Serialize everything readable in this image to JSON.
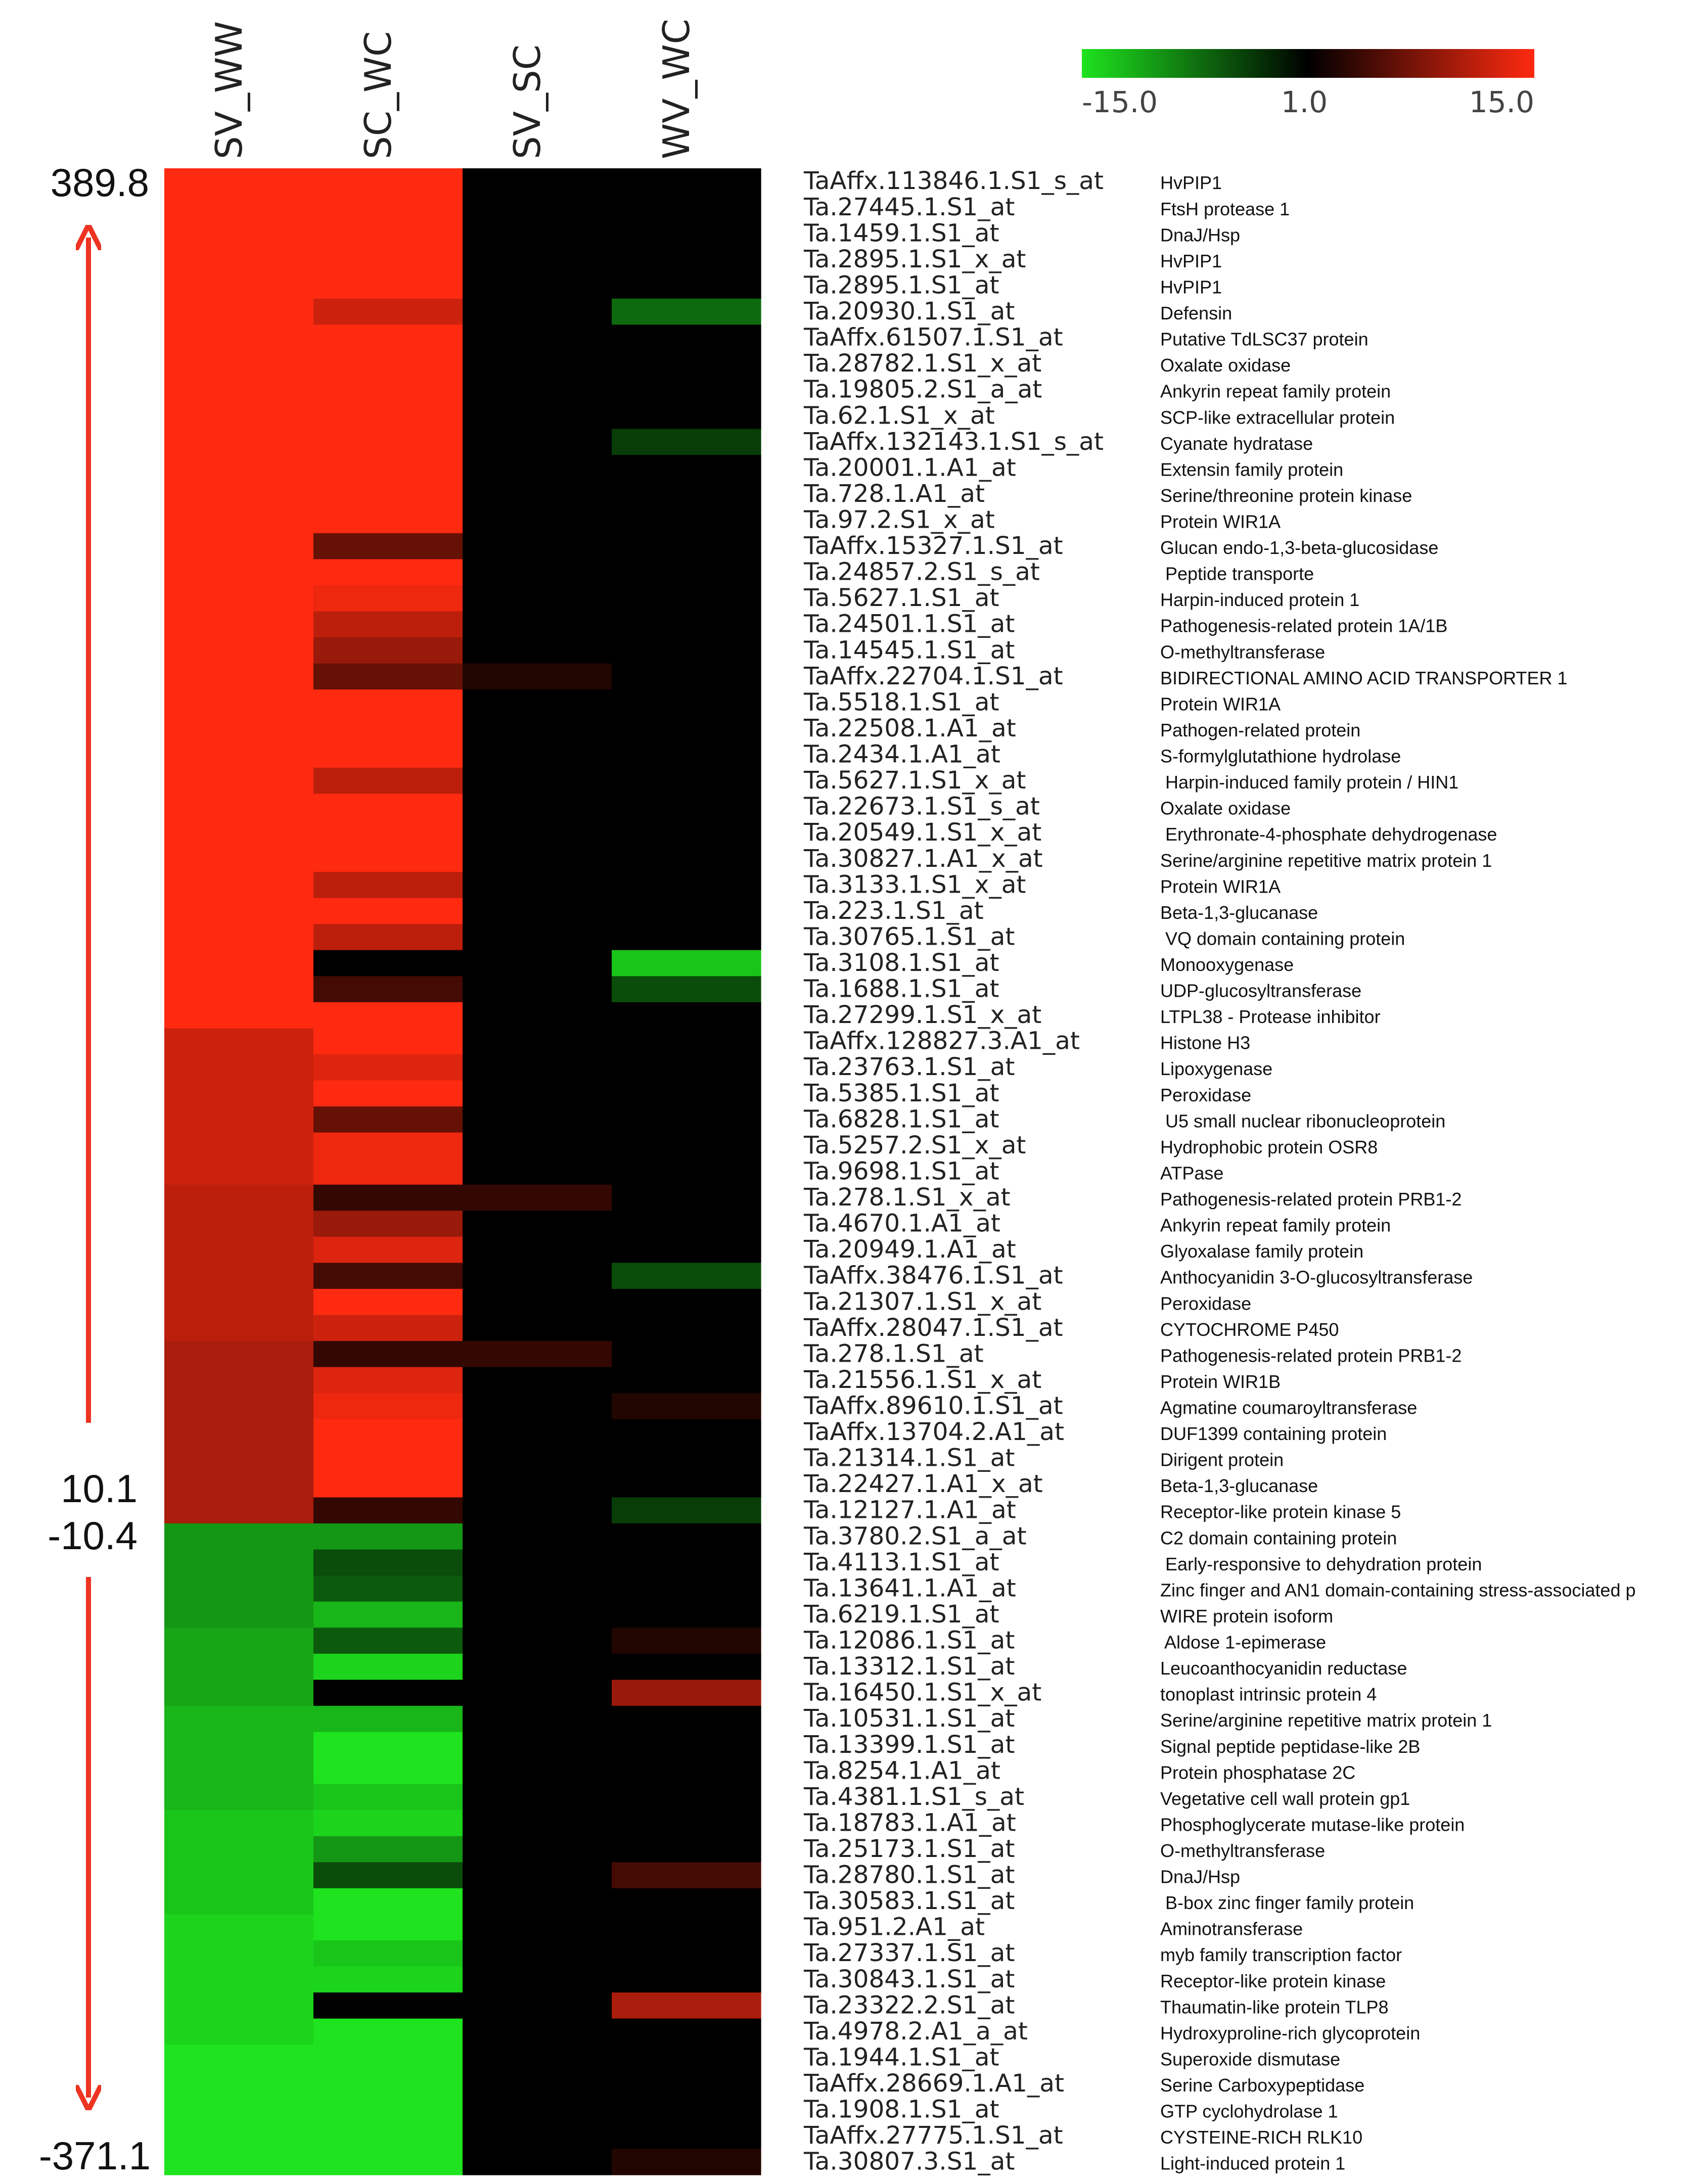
{
  "chart_data": {
    "type": "heatmap",
    "columns": [
      "SV_WW",
      "SC_WC",
      "SV_SC",
      "WV_WC"
    ],
    "color_scale": {
      "min": -15.0,
      "mid": 1.0,
      "max": 15.0,
      "labels": [
        "-15.0",
        "1.0",
        "15.0"
      ],
      "colors": [
        "#1ee31e",
        "#000000",
        "#ff2a10"
      ]
    },
    "side_labels": {
      "top": "389.8",
      "upper_bottom": "10.1",
      "lower_top": "-10.4",
      "bottom": "-371.1"
    },
    "arrow_color": "#ee3322",
    "rows": [
      {
        "probe": "TaAffx.113846.1.S1_s_at",
        "annotation": "HvPIP1",
        "values": [
          15,
          15,
          0,
          0
        ]
      },
      {
        "probe": "Ta.27445.1.S1_at",
        "annotation": "FtsH protease 1",
        "values": [
          15,
          15,
          0,
          0
        ]
      },
      {
        "probe": "Ta.1459.1.S1_at",
        "annotation": "DnaJ/Hsp",
        "values": [
          15,
          15,
          0,
          0
        ]
      },
      {
        "probe": "Ta.2895.1.S1_x_at",
        "annotation": "HvPIP1",
        "values": [
          15,
          15,
          0,
          0
        ]
      },
      {
        "probe": "Ta.2895.1.S1_at",
        "annotation": "HvPIP1",
        "values": [
          15,
          15,
          0,
          0
        ]
      },
      {
        "probe": "Ta.20930.1.S1_at",
        "annotation": "Defensin",
        "values": [
          15,
          12,
          0,
          -7
        ]
      },
      {
        "probe": "TaAffx.61507.1.S1_at",
        "annotation": "Putative TdLSC37 protein",
        "values": [
          15,
          15,
          0,
          0
        ]
      },
      {
        "probe": "Ta.28782.1.S1_x_at",
        "annotation": "Oxalate oxidase",
        "values": [
          15,
          15,
          0,
          0
        ]
      },
      {
        "probe": "Ta.19805.2.S1_a_at",
        "annotation": "Ankyrin repeat family protein",
        "values": [
          15,
          15,
          0,
          0
        ]
      },
      {
        "probe": "Ta.62.1.S1_x_at",
        "annotation": "SCP-like extracellular protein",
        "values": [
          15,
          15,
          0,
          0
        ]
      },
      {
        "probe": "TaAffx.132143.1.S1_s_at",
        "annotation": "Cyanate hydratase",
        "values": [
          15,
          15,
          0,
          -4
        ]
      },
      {
        "probe": "Ta.20001.1.A1_at",
        "annotation": "Extensin family protein",
        "values": [
          15,
          15,
          0,
          0
        ]
      },
      {
        "probe": "Ta.728.1.A1_at",
        "annotation": "Serine/threonine protein kinase",
        "values": [
          15,
          15,
          0,
          0
        ]
      },
      {
        "probe": "Ta.97.2.S1_x_at",
        "annotation": "Protein WIR1A",
        "values": [
          15,
          15,
          0,
          0
        ]
      },
      {
        "probe": "TaAffx.15327.1.S1_at",
        "annotation": "Glucan endo-1,3-beta-glucosidase",
        "values": [
          15,
          6,
          0,
          0
        ]
      },
      {
        "probe": "Ta.24857.2.S1_s_at",
        "annotation": " Peptide transporte",
        "values": [
          15,
          15,
          0,
          0
        ]
      },
      {
        "probe": "Ta.5627.1.S1_at",
        "annotation": "Harpin-induced protein 1",
        "values": [
          15,
          14,
          0,
          0
        ]
      },
      {
        "probe": "Ta.24501.1.S1_at",
        "annotation": "Pathogenesis-related protein 1A/1B",
        "values": [
          15,
          11,
          0,
          0
        ]
      },
      {
        "probe": "Ta.14545.1.S1_at",
        "annotation": "O-methyltransferase",
        "values": [
          15,
          9,
          0,
          0
        ]
      },
      {
        "probe": "TaAffx.22704.1.S1_at",
        "annotation": "BIDIRECTIONAL AMINO ACID TRANSPORTER 1",
        "values": [
          15,
          6,
          2,
          0
        ]
      },
      {
        "probe": "Ta.5518.1.S1_at",
        "annotation": "Protein WIR1A",
        "values": [
          15,
          15,
          0,
          0
        ]
      },
      {
        "probe": "Ta.22508.1.A1_at",
        "annotation": "Pathogen-related protein",
        "values": [
          15,
          15,
          0,
          0
        ]
      },
      {
        "probe": "Ta.2434.1.A1_at",
        "annotation": "S-formylglutathione hydrolase",
        "values": [
          15,
          15,
          0,
          0
        ]
      },
      {
        "probe": "Ta.5627.1.S1_x_at",
        "annotation": " Harpin-induced family protein / HIN1",
        "values": [
          15,
          11,
          0,
          0
        ]
      },
      {
        "probe": "Ta.22673.1.S1_s_at",
        "annotation": "Oxalate oxidase",
        "values": [
          15,
          15,
          0,
          0
        ]
      },
      {
        "probe": "Ta.20549.1.S1_x_at",
        "annotation": " Erythronate-4-phosphate dehydrogenase",
        "values": [
          15,
          15,
          0,
          0
        ]
      },
      {
        "probe": "Ta.30827.1.A1_x_at",
        "annotation": "Serine/arginine repetitive matrix protein 1",
        "values": [
          15,
          15,
          0,
          0
        ]
      },
      {
        "probe": "Ta.3133.1.S1_x_at",
        "annotation": "Protein WIR1A",
        "values": [
          15,
          11,
          0,
          0
        ]
      },
      {
        "probe": "Ta.223.1.S1_at",
        "annotation": "Beta-1,3-glucanase",
        "values": [
          15,
          15,
          0,
          0
        ]
      },
      {
        "probe": "Ta.30765.1.S1_at",
        "annotation": " VQ domain containing protein",
        "values": [
          15,
          11,
          0,
          0
        ]
      },
      {
        "probe": "Ta.3108.1.S1_at",
        "annotation": "Monooxygenase",
        "values": [
          15,
          0,
          0,
          -13
        ]
      },
      {
        "probe": "Ta.1688.1.S1_at",
        "annotation": "UDP-glucosyltransferase",
        "values": [
          15,
          4,
          0,
          -5
        ]
      },
      {
        "probe": "Ta.27299.1.S1_x_at",
        "annotation": "LTPL38 - Protease inhibitor",
        "values": [
          15,
          15,
          0,
          0
        ]
      },
      {
        "probe": "TaAffx.128827.3.A1_at",
        "annotation": "Histone H3",
        "values": [
          12,
          15,
          0,
          0
        ]
      },
      {
        "probe": "Ta.23763.1.S1_at",
        "annotation": "Lipoxygenase",
        "values": [
          12,
          13,
          0,
          0
        ]
      },
      {
        "probe": "Ta.5385.1.S1_at",
        "annotation": "Peroxidase",
        "values": [
          12,
          15,
          0,
          0
        ]
      },
      {
        "probe": "Ta.6828.1.S1_at",
        "annotation": " U5 small nuclear ribonucleoprotein",
        "values": [
          12,
          6,
          0,
          0
        ]
      },
      {
        "probe": "Ta.5257.2.S1_x_at",
        "annotation": "Hydrophobic protein OSR8",
        "values": [
          12,
          14,
          0,
          0
        ]
      },
      {
        "probe": "Ta.9698.1.S1_at",
        "annotation": "ATPase",
        "values": [
          12,
          14,
          0,
          0
        ]
      },
      {
        "probe": "Ta.278.1.S1_x_at",
        "annotation": "Pathogenesis-related protein PRB1-2",
        "values": [
          11,
          3,
          3,
          0
        ]
      },
      {
        "probe": "Ta.4670.1.A1_at",
        "annotation": "Ankyrin repeat family protein",
        "values": [
          11,
          9,
          0,
          0
        ]
      },
      {
        "probe": "Ta.20949.1.A1_at",
        "annotation": "Glyoxalase family protein",
        "values": [
          11,
          13,
          0,
          0
        ]
      },
      {
        "probe": "TaAffx.38476.1.S1_at",
        "annotation": "Anthocyanidin 3-O-glucosyltransferase",
        "values": [
          11,
          4,
          0,
          -5
        ]
      },
      {
        "probe": "Ta.21307.1.S1_x_at",
        "annotation": "Peroxidase",
        "values": [
          11,
          15,
          0,
          0
        ]
      },
      {
        "probe": "TaAffx.28047.1.S1_at",
        "annotation": "CYTOCHROME P450",
        "values": [
          11,
          12,
          0,
          0
        ]
      },
      {
        "probe": "Ta.278.1.S1_at",
        "annotation": "Pathogenesis-related protein PRB1-2",
        "values": [
          10,
          3,
          3,
          0
        ]
      },
      {
        "probe": "Ta.21556.1.S1_x_at",
        "annotation": "Protein WIR1B",
        "values": [
          10,
          13,
          0,
          0
        ]
      },
      {
        "probe": "TaAffx.89610.1.S1_at",
        "annotation": "Agmatine coumaroyltransferase",
        "values": [
          10,
          14,
          0,
          2
        ]
      },
      {
        "probe": "TaAffx.13704.2.A1_at",
        "annotation": "DUF1399 containing protein",
        "values": [
          10,
          15,
          0,
          0
        ]
      },
      {
        "probe": "Ta.21314.1.S1_at",
        "annotation": "Dirigent protein",
        "values": [
          10,
          15,
          0,
          0
        ]
      },
      {
        "probe": "Ta.22427.1.A1_x_at",
        "annotation": "Beta-1,3-glucanase",
        "values": [
          10,
          15,
          0,
          0
        ]
      },
      {
        "probe": "Ta.12127.1.A1_at",
        "annotation": "Receptor-like protein kinase 5",
        "values": [
          10,
          3,
          0,
          -4
        ]
      },
      {
        "probe": "Ta.3780.2.S1_a_at",
        "annotation": "C2 domain containing protein",
        "values": [
          -10,
          -10,
          0,
          0
        ]
      },
      {
        "probe": "Ta.4113.1.S1_at",
        "annotation": " Early-responsive to dehydration protein",
        "values": [
          -10,
          -5,
          0,
          0
        ]
      },
      {
        "probe": "Ta.13641.1.A1_at",
        "annotation": "Zinc finger and AN1 domain-containing stress-associated p",
        "values": [
          -10,
          -6,
          0,
          0
        ]
      },
      {
        "probe": "Ta.6219.1.S1_at",
        "annotation": "WIRE protein isoform",
        "values": [
          -10,
          -12,
          0,
          0
        ]
      },
      {
        "probe": "Ta.12086.1.S1_at",
        "annotation": " Aldose 1-epimerase",
        "values": [
          -11,
          -6,
          0,
          2
        ]
      },
      {
        "probe": "Ta.13312.1.S1_at",
        "annotation": "Leucoanthocyanidin reductase",
        "values": [
          -11,
          -14,
          0,
          0
        ]
      },
      {
        "probe": "Ta.16450.1.S1_x_at",
        "annotation": "tonoplast intrinsic protein 4",
        "values": [
          -11,
          0,
          0,
          9
        ]
      },
      {
        "probe": "Ta.10531.1.S1_at",
        "annotation": "Serine/arginine repetitive matrix protein 1",
        "values": [
          -12,
          -12,
          0,
          0
        ]
      },
      {
        "probe": "Ta.13399.1.S1_at",
        "annotation": "Signal peptide peptidase-like 2B",
        "values": [
          -12,
          -15,
          0,
          0
        ]
      },
      {
        "probe": "Ta.8254.1.A1_at",
        "annotation": "Protein phosphatase 2C",
        "values": [
          -12,
          -15,
          0,
          0
        ]
      },
      {
        "probe": "Ta.4381.1.S1_s_at",
        "annotation": "Vegetative cell wall protein gp1",
        "values": [
          -12,
          -13,
          0,
          0
        ]
      },
      {
        "probe": "Ta.18783.1.A1_at",
        "annotation": "Phosphoglycerate mutase-like protein",
        "values": [
          -13,
          -14,
          0,
          0
        ]
      },
      {
        "probe": "Ta.25173.1.S1_at",
        "annotation": "O-methyltransferase",
        "values": [
          -13,
          -10,
          0,
          0
        ]
      },
      {
        "probe": "Ta.28780.1.S1_at",
        "annotation": "DnaJ/Hsp",
        "values": [
          -13,
          -5,
          0,
          4
        ]
      },
      {
        "probe": "Ta.30583.1.S1_at",
        "annotation": " B-box zinc finger family protein",
        "values": [
          -13,
          -15,
          0,
          0
        ]
      },
      {
        "probe": "Ta.951.2.A1_at",
        "annotation": "Aminotransferase",
        "values": [
          -14,
          -15,
          0,
          0
        ]
      },
      {
        "probe": "Ta.27337.1.S1_at",
        "annotation": "myb family transcription factor",
        "values": [
          -14,
          -13,
          0,
          0
        ]
      },
      {
        "probe": "Ta.30843.1.S1_at",
        "annotation": "Receptor-like protein kinase",
        "values": [
          -14,
          -14,
          0,
          0
        ]
      },
      {
        "probe": "Ta.23322.2.S1_at",
        "annotation": "Thaumatin-like protein TLP8",
        "values": [
          -14,
          0,
          0,
          10
        ]
      },
      {
        "probe": "Ta.4978.2.A1_a_at",
        "annotation": "Hydroxyproline-rich glycoprotein",
        "values": [
          -14,
          -15,
          0,
          0
        ]
      },
      {
        "probe": "Ta.1944.1.S1_at",
        "annotation": "Superoxide dismutase",
        "values": [
          -15,
          -15,
          0,
          0
        ]
      },
      {
        "probe": "TaAffx.28669.1.A1_at",
        "annotation": "Serine Carboxypeptidase",
        "values": [
          -15,
          -15,
          0,
          0
        ]
      },
      {
        "probe": "Ta.1908.1.S1_at",
        "annotation": "GTP cyclohydrolase 1",
        "values": [
          -15,
          -15,
          0,
          0
        ]
      },
      {
        "probe": "TaAffx.27775.1.S1_at",
        "annotation": "CYSTEINE-RICH RLK10",
        "values": [
          -15,
          -15,
          0,
          0
        ]
      },
      {
        "probe": "Ta.30807.3.S1_at",
        "annotation": "Light-induced protein 1",
        "values": [
          -15,
          -15,
          0,
          2
        ]
      }
    ]
  }
}
